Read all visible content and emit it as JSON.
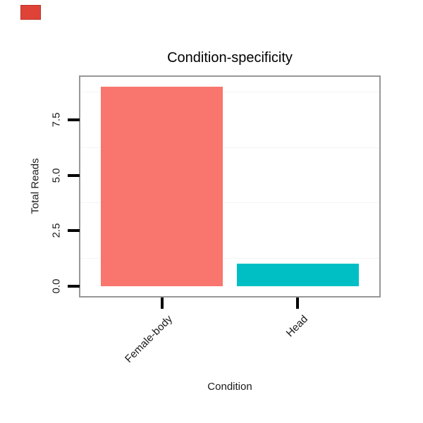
{
  "marker": {
    "fill_color": "#df4338",
    "border_color": "#b93227"
  },
  "chart_data": {
    "type": "bar",
    "title": "Condition-specificity",
    "xlabel": "Condition",
    "ylabel": "Total Reads",
    "categories": [
      "Female-body",
      "Head"
    ],
    "values": [
      9,
      1
    ],
    "bar_colors": [
      "#F8766D",
      "#00BFC4"
    ],
    "ytick_values": [
      0.0,
      2.5,
      5.0,
      7.5
    ],
    "ytick_labels": [
      "0.0",
      "2.5",
      "5.0",
      "7.5"
    ],
    "ylim": [
      -0.45,
      9.45
    ],
    "minor_gridlines": [
      1.25,
      3.75,
      6.25,
      8.75
    ],
    "bar_width_fraction": 0.9,
    "grid": "minor-horizontal-only",
    "legend": "none",
    "panel_border_color": "#979797",
    "background": "#ffffff"
  }
}
